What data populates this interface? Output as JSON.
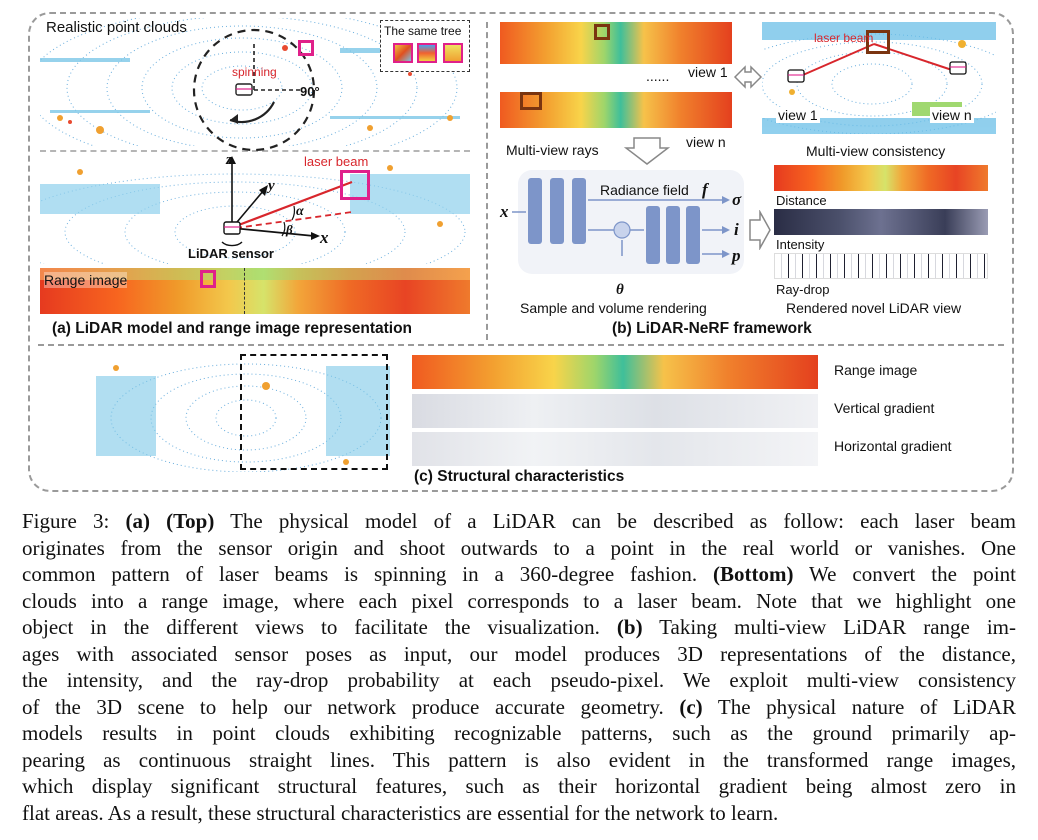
{
  "panel_a": {
    "top_label": "Realistic point clouds",
    "same_tree_label": "The same tree",
    "spinning_label": "spinning",
    "angle_label": "90°",
    "laser_beam_label": "laser beam",
    "sensor_label": "LiDAR sensor",
    "range_image_label": "Range image",
    "axis_z": "z",
    "axis_y": "y",
    "axis_x": "x",
    "alpha": "α",
    "beta": "β",
    "caption": "(a) LiDAR model and range image representation"
  },
  "panel_b": {
    "view1_label": "view 1",
    "dots_label": "......",
    "viewn_label": "view n",
    "multiview_rays": "Multi-view rays",
    "laser_beam_label": "laser beam",
    "mv_view1": "view 1",
    "mv_viewn": "view n",
    "multiview_consistency": "Multi-view consistency",
    "input_x": "x",
    "radiance_field_label": "Radiance field",
    "radiance_field_symbol": "f",
    "theta": "θ",
    "out_sigma": "σ",
    "out_i": "i",
    "out_p": "p",
    "sample_label": "Sample and volume rendering",
    "distance_label": "Distance",
    "intensity_label": "Intensity",
    "raydrop_label": "Ray-drop",
    "rendered_label": "Rendered novel LiDAR view",
    "caption": "(b) LiDAR-NeRF  framework"
  },
  "panel_c": {
    "range_image": "Range image",
    "vertical_gradient": "Vertical gradient",
    "horizontal_gradient": "Horizontal gradient",
    "caption": "(c) Structural characteristics"
  },
  "caption": {
    "lines": [
      [
        "Figure 3: ",
        "(a) (Top)",
        " The physical model of a LiDAR can be described as follow: each laser beam"
      ],
      [
        "",
        "",
        "originates from the sensor origin and shoot outwards to a point in the real world or vanishes. One"
      ],
      [
        "",
        "",
        "common pattern of laser beams is spinning in a 360-degree fashion. "
      ],
      [
        "",
        "",
        "clouds into a range image, where each pixel corresponds to a laser beam. Note that we highlight one"
      ],
      [
        "",
        "",
        "object in the different views to facilitate the visualization. "
      ],
      [
        "",
        "",
        "ages with associated sensor poses as input, our model produces 3D representations of the distance,"
      ],
      [
        "",
        "",
        "the intensity, and the ray-drop probability at each pseudo-pixel. We exploit multi-view consistency"
      ],
      [
        "",
        "",
        "of the 3D scene to help our network produce accurate geometry. "
      ],
      [
        "",
        "",
        "models results in point clouds exhibiting recognizable patterns, such as the ground primarily ap-"
      ],
      [
        "",
        "",
        "pearing as continuous straight lines. This pattern is also evident in the transformed range images,"
      ],
      [
        "",
        "",
        "which display significant structural features, such as their horizontal gradient being almost zero in"
      ],
      [
        "",
        "",
        "flat areas. As a result, these structural characteristics are essential for the network to learn."
      ]
    ],
    "l1_pre": "Figure 3: ",
    "l1_bold": "(a) (Top)",
    "l1_post": " The physical model of a LiDAR can be described as follow: each laser beam",
    "l2": "originates from the sensor origin and shoot outwards to a point in the real world or vanishes. One",
    "l3_pre": "common pattern of laser beams is spinning in a 360-degree fashion. ",
    "l3_bold": "(Bottom)",
    "l3_post": " We convert the point",
    "l4": "clouds into a range image, where each pixel corresponds to a laser beam. Note that we highlight one",
    "l5_pre": "object in the different views to facilitate the visualization. ",
    "l5_bold": "(b)",
    "l5_post": " Taking multi-view LiDAR range im-",
    "l6": "ages with associated sensor poses as input, our model produces 3D representations of the distance,",
    "l7": "the intensity, and the ray-drop probability at each pseudo-pixel. We exploit multi-view consistency",
    "l8_pre": "of the 3D scene to help our network produce accurate geometry. ",
    "l8_bold": "(c)",
    "l8_post": " The physical nature of LiDAR",
    "l9": "models results in point clouds exhibiting recognizable patterns, such as the ground primarily ap-",
    "l10": "pearing as continuous straight lines. This pattern is also evident in the transformed range images,",
    "l11": "which display significant structural features, such as their horizontal gradient being almost zero in",
    "l12": "flat areas. As a result, these structural characteristics are essential for the network to learn."
  },
  "colors": {
    "highlight_magenta": "#e0208a",
    "highlight_brown": "#7a3410",
    "network_blue": "#7d95c9",
    "laser_red": "#d8262c"
  }
}
